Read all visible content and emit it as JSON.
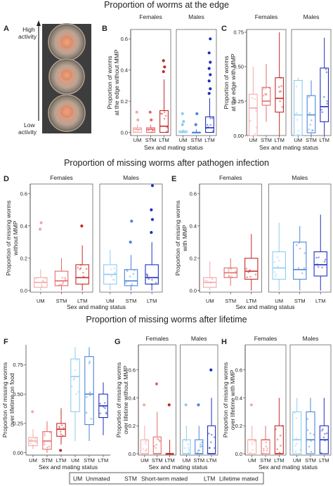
{
  "figure": {
    "section_titles": [
      "Proportion of worms at the edge",
      "Proportion of missing worms after pathogen infection",
      "Proportion of missing worms after lifetime"
    ],
    "panel_letters": [
      "A",
      "B",
      "C",
      "D",
      "E",
      "F",
      "G",
      "H"
    ],
    "photo_panel": {
      "top_label": "High\nactivity",
      "bottom_label": "Low\nactivity"
    },
    "legend": [
      {
        "code": "UM",
        "meaning": "Unmated"
      },
      {
        "code": "STM",
        "meaning": "Short-term mated"
      },
      {
        "code": "LTM",
        "meaning": "Lifetime mated"
      }
    ],
    "colors": {
      "UM_F": "#f4a9a9",
      "STM_F": "#e46a6a",
      "LTM_F": "#c62828",
      "UM_M": "#8fcbef",
      "STM_M": "#4a85d8",
      "LTM_M": "#1e2fbf"
    }
  },
  "chart_data": [
    {
      "panel": "B",
      "type": "box",
      "xlabel": "Sex and mating status",
      "ylabel": "Proportion of worms\nat the edge without MMP",
      "facets": [
        "Females",
        "Males"
      ],
      "categories": [
        "UM",
        "STM",
        "LTM"
      ],
      "ylim": [
        -0.02,
        0.66
      ],
      "yticks": [
        0.0,
        0.2,
        0.4,
        0.6
      ],
      "series": [
        {
          "group": "UM_F",
          "q1": 0.0,
          "med": 0.02,
          "q3": 0.03,
          "lo": 0.0,
          "hi": 0.05,
          "out": [
            0.13,
            0.08
          ]
        },
        {
          "group": "STM_F",
          "q1": 0.0,
          "med": 0.02,
          "q3": 0.03,
          "lo": 0.0,
          "hi": 0.05,
          "out": [
            0.13,
            0.08
          ]
        },
        {
          "group": "LTM_F",
          "q1": 0.0,
          "med": 0.04,
          "q3": 0.14,
          "lo": 0.0,
          "hi": 0.34,
          "out": [
            0.39,
            0.42,
            0.46
          ]
        },
        {
          "group": "UM_M",
          "q1": 0.0,
          "med": 0.0,
          "q3": 0.01,
          "lo": 0.0,
          "hi": 0.02,
          "out": [
            0.05,
            0.07,
            0.12
          ]
        },
        {
          "group": "STM_M",
          "q1": 0.0,
          "med": 0.0,
          "q3": 0.0,
          "lo": 0.0,
          "hi": 0.02,
          "out": [
            0.05,
            0.12
          ]
        },
        {
          "group": "LTM_M",
          "q1": 0.0,
          "med": 0.03,
          "q3": 0.1,
          "lo": 0.0,
          "hi": 0.22,
          "out": [
            0.25,
            0.28,
            0.33,
            0.37,
            0.41,
            0.45,
            0.51,
            0.6
          ]
        }
      ]
    },
    {
      "panel": "C",
      "type": "box",
      "xlabel": "Sex and mating status",
      "ylabel": "Proportion of worms\nat the edge with MMP",
      "facets": [
        "Females",
        "Males"
      ],
      "categories": [
        "UM",
        "STM",
        "LTM"
      ],
      "ylim": [
        0.0,
        0.77
      ],
      "yticks": [
        0.0,
        0.25,
        0.5,
        0.75
      ],
      "series": [
        {
          "group": "UM_F",
          "q1": 0.0,
          "med": 0.2,
          "q3": 0.3,
          "lo": 0.0,
          "hi": 0.5,
          "out": []
        },
        {
          "group": "STM_F",
          "q1": 0.22,
          "med": 0.25,
          "q3": 0.35,
          "lo": 0.1,
          "hi": 0.52,
          "out": []
        },
        {
          "group": "LTM_F",
          "q1": 0.17,
          "med": 0.27,
          "q3": 0.42,
          "lo": 0.0,
          "hi": 0.75,
          "out": []
        },
        {
          "group": "UM_M",
          "q1": 0.0,
          "med": 0.15,
          "q3": 0.4,
          "lo": 0.0,
          "hi": 0.42,
          "out": []
        },
        {
          "group": "STM_M",
          "q1": 0.02,
          "med": 0.15,
          "q3": 0.29,
          "lo": 0.0,
          "hi": 0.4,
          "out": []
        },
        {
          "group": "LTM_M",
          "q1": 0.1,
          "med": 0.21,
          "q3": 0.49,
          "lo": 0.0,
          "hi": 0.71,
          "out": []
        }
      ]
    },
    {
      "panel": "D",
      "type": "box",
      "xlabel": "Sex and mating status",
      "ylabel": "Proportion of missing worms\nwithout MMP",
      "facets": [
        "Females",
        "Males"
      ],
      "categories": [
        "UM",
        "STM",
        "LTM"
      ],
      "ylim": [
        -0.01,
        0.66
      ],
      "yticks": [
        0.0,
        0.2,
        0.4,
        0.6
      ],
      "series": [
        {
          "group": "UM_F",
          "q1": 0.02,
          "med": 0.05,
          "q3": 0.08,
          "lo": 0.0,
          "hi": 0.13,
          "out": [
            0.38,
            0.42
          ]
        },
        {
          "group": "STM_F",
          "q1": 0.03,
          "med": 0.06,
          "q3": 0.12,
          "lo": 0.0,
          "hi": 0.2,
          "out": []
        },
        {
          "group": "LTM_F",
          "q1": 0.04,
          "med": 0.08,
          "q3": 0.16,
          "lo": 0.0,
          "hi": 0.28,
          "out": [
            0.4
          ]
        },
        {
          "group": "UM_M",
          "q1": 0.04,
          "med": 0.1,
          "q3": 0.16,
          "lo": 0.0,
          "hi": 0.25,
          "out": []
        },
        {
          "group": "STM_M",
          "q1": 0.03,
          "med": 0.06,
          "q3": 0.13,
          "lo": 0.0,
          "hi": 0.22,
          "out": [
            0.3,
            0.43
          ]
        },
        {
          "group": "LTM_M",
          "q1": 0.04,
          "med": 0.08,
          "q3": 0.16,
          "lo": 0.0,
          "hi": 0.3,
          "out": [
            0.36,
            0.44,
            0.5,
            0.65
          ]
        }
      ]
    },
    {
      "panel": "E",
      "type": "box",
      "xlabel": "Sex and mating status",
      "ylabel": "Proportion of missing worms\nwith MMP",
      "facets": [
        "Females",
        "Males"
      ],
      "categories": [
        "UM",
        "STM",
        "LTM"
      ],
      "ylim": [
        -0.01,
        0.66
      ],
      "yticks": [
        0.0,
        0.2,
        0.4,
        0.6
      ],
      "series": [
        {
          "group": "UM_F",
          "q1": 0.02,
          "med": 0.05,
          "q3": 0.08,
          "lo": 0.0,
          "hi": 0.18,
          "out": []
        },
        {
          "group": "STM_F",
          "q1": 0.08,
          "med": 0.11,
          "q3": 0.14,
          "lo": 0.03,
          "hi": 0.2,
          "out": []
        },
        {
          "group": "LTM_F",
          "q1": 0.07,
          "med": 0.12,
          "q3": 0.2,
          "lo": 0.0,
          "hi": 0.35,
          "out": []
        },
        {
          "group": "UM_M",
          "q1": 0.07,
          "med": 0.14,
          "q3": 0.24,
          "lo": 0.0,
          "hi": 0.42,
          "out": []
        },
        {
          "group": "STM_M",
          "q1": 0.07,
          "med": 0.13,
          "q3": 0.3,
          "lo": 0.0,
          "hi": 0.4,
          "out": []
        },
        {
          "group": "LTM_M",
          "q1": 0.09,
          "med": 0.16,
          "q3": 0.24,
          "lo": 0.0,
          "hi": 0.47,
          "out": []
        }
      ]
    },
    {
      "panel": "F",
      "type": "box",
      "xlabel": "Sex and mating status",
      "ylabel": "Proportion of missing worms\nover lifetime on food",
      "facets": [],
      "categories": [
        "UM",
        "STM",
        "LTM",
        "UM",
        "STM",
        "LTM"
      ],
      "ylim": [
        -0.02,
        0.92
      ],
      "yticks": [
        0.0,
        0.25,
        0.5,
        0.75
      ],
      "series": [
        {
          "group": "UM_F",
          "q1": 0.06,
          "med": 0.1,
          "q3": 0.13,
          "lo": 0.03,
          "hi": 0.2,
          "out": [
            0.35
          ]
        },
        {
          "group": "STM_F",
          "q1": 0.03,
          "med": 0.1,
          "q3": 0.18,
          "lo": 0.0,
          "hi": 0.27,
          "out": []
        },
        {
          "group": "LTM_F",
          "q1": 0.14,
          "med": 0.2,
          "q3": 0.25,
          "lo": 0.07,
          "hi": 0.38,
          "out": [
            0.02
          ]
        },
        {
          "group": "UM_M",
          "q1": 0.35,
          "med": 0.65,
          "q3": 0.8,
          "lo": 0.1,
          "hi": 0.9,
          "out": []
        },
        {
          "group": "STM_M",
          "q1": 0.24,
          "med": 0.5,
          "q3": 0.82,
          "lo": 0.1,
          "hi": 0.9,
          "out": []
        },
        {
          "group": "LTM_M",
          "q1": 0.3,
          "med": 0.4,
          "q3": 0.5,
          "lo": 0.15,
          "hi": 0.6,
          "out": []
        }
      ]
    },
    {
      "panel": "G",
      "type": "box",
      "xlabel": "Sex and mating status",
      "ylabel": "Proportion of missing worms\nover lifetime without MMP",
      "facets": [
        "Females",
        "Males"
      ],
      "categories": [
        "UM",
        "STM",
        "LTM"
      ],
      "ylim": [
        -0.01,
        0.78
      ],
      "yticks": [
        0.0,
        0.2,
        0.4,
        0.6
      ],
      "series": [
        {
          "group": "UM_F",
          "q1": 0.0,
          "med": 0.0,
          "q3": 0.1,
          "lo": 0.0,
          "hi": 0.2,
          "out": [
            0.35
          ]
        },
        {
          "group": "STM_F",
          "q1": 0.0,
          "med": 0.0,
          "q3": 0.12,
          "lo": 0.0,
          "hi": 0.3,
          "out": [
            0.5
          ]
        },
        {
          "group": "LTM_F",
          "q1": 0.0,
          "med": 0.0,
          "q3": 0.0,
          "lo": 0.0,
          "hi": 0.1,
          "out": [
            0.35
          ]
        },
        {
          "group": "UM_M",
          "q1": 0.0,
          "med": 0.0,
          "q3": 0.1,
          "lo": 0.0,
          "hi": 0.2,
          "out": [
            0.35
          ]
        },
        {
          "group": "STM_M",
          "q1": 0.0,
          "med": 0.0,
          "q3": 0.1,
          "lo": 0.0,
          "hi": 0.2,
          "out": [
            0.35
          ]
        },
        {
          "group": "LTM_M",
          "q1": 0.0,
          "med": 0.0,
          "q3": 0.2,
          "lo": 0.0,
          "hi": 0.4,
          "out": [
            0.6
          ]
        }
      ]
    },
    {
      "panel": "H",
      "type": "box",
      "xlabel": "Sex and mating status",
      "ylabel": "Proportion of missing worms\nover lifetime with MMP",
      "facets": [
        "Females",
        "Males"
      ],
      "categories": [
        "UM",
        "STM",
        "LTM"
      ],
      "ylim": [
        -0.01,
        0.78
      ],
      "yticks": [
        0.0,
        0.2,
        0.4,
        0.6
      ],
      "series": [
        {
          "group": "UM_F",
          "q1": 0.0,
          "med": 0.1,
          "q3": 0.1,
          "lo": 0.0,
          "hi": 0.2,
          "out": [
            0.35
          ]
        },
        {
          "group": "STM_F",
          "q1": 0.0,
          "med": 0.1,
          "q3": 0.1,
          "lo": 0.0,
          "hi": 0.2,
          "out": []
        },
        {
          "group": "LTM_F",
          "q1": 0.0,
          "med": 0.0,
          "q3": 0.2,
          "lo": 0.0,
          "hi": 0.4,
          "out": []
        },
        {
          "group": "UM_M",
          "q1": 0.0,
          "med": 0.1,
          "q3": 0.3,
          "lo": 0.0,
          "hi": 0.4,
          "out": []
        },
        {
          "group": "STM_M",
          "q1": 0.0,
          "med": 0.1,
          "q3": 0.3,
          "lo": 0.0,
          "hi": 0.4,
          "out": []
        },
        {
          "group": "LTM_M",
          "q1": 0.0,
          "med": 0.1,
          "q3": 0.2,
          "lo": 0.0,
          "hi": 0.4,
          "out": []
        }
      ]
    }
  ]
}
